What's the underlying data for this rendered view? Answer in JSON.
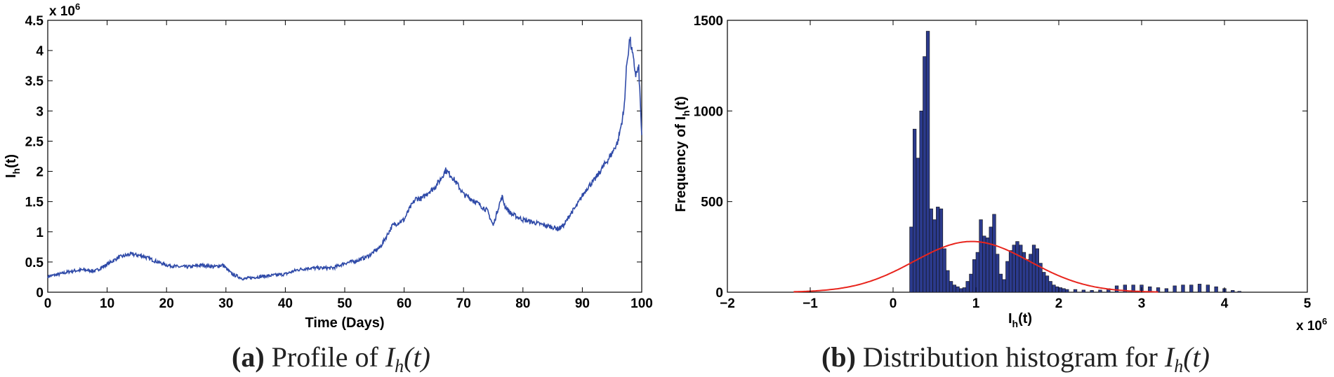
{
  "chart_data": [
    {
      "type": "line",
      "title": "",
      "xlabel": "Time (Days)",
      "ylabel": "I_h(t)",
      "y_multiplier": "x 10^6",
      "xlim": [
        0,
        100
      ],
      "ylim": [
        0,
        4.5
      ],
      "xticks": [
        0,
        10,
        20,
        30,
        40,
        50,
        60,
        70,
        80,
        90,
        100
      ],
      "yticks": [
        0,
        0.5,
        1,
        1.5,
        2,
        2.5,
        3,
        3.5,
        4,
        4.5
      ],
      "series_color": "#2f4aa8",
      "series": [
        {
          "x": [
            0,
            2,
            4,
            6,
            8,
            10,
            12,
            14,
            16,
            18,
            20,
            22,
            24,
            26,
            28,
            29.5,
            31,
            33,
            35,
            37,
            40,
            42,
            44,
            46,
            48,
            50,
            52,
            54,
            56,
            57,
            58,
            60,
            61,
            62,
            63,
            64,
            65,
            66,
            67,
            68,
            69,
            70,
            72,
            74,
            75,
            76,
            76.5,
            77,
            78,
            79,
            80,
            82,
            84,
            86,
            87,
            88,
            89,
            90,
            91,
            92,
            93,
            94,
            95,
            96,
            97,
            97.5,
            98,
            98.5,
            99,
            99.5,
            100
          ],
          "y": [
            0.26,
            0.3,
            0.35,
            0.37,
            0.35,
            0.46,
            0.58,
            0.63,
            0.6,
            0.52,
            0.45,
            0.42,
            0.42,
            0.45,
            0.42,
            0.45,
            0.3,
            0.22,
            0.25,
            0.27,
            0.3,
            0.37,
            0.4,
            0.4,
            0.4,
            0.48,
            0.52,
            0.6,
            0.75,
            0.92,
            1.1,
            1.2,
            1.4,
            1.55,
            1.55,
            1.65,
            1.72,
            1.85,
            2.02,
            1.92,
            1.78,
            1.62,
            1.5,
            1.35,
            1.1,
            1.45,
            1.58,
            1.42,
            1.3,
            1.25,
            1.2,
            1.15,
            1.1,
            1.05,
            1.12,
            1.3,
            1.42,
            1.6,
            1.75,
            1.85,
            2.0,
            2.15,
            2.3,
            2.5,
            3.0,
            3.8,
            4.2,
            3.9,
            3.6,
            3.7,
            2.6
          ]
        }
      ]
    },
    {
      "type": "bar",
      "title": "",
      "xlabel": "I_h(t)",
      "ylabel": "Frequency of I_h(t)",
      "x_multiplier": "x 10^6",
      "xlim": [
        -2,
        5
      ],
      "ylim": [
        0,
        1500
      ],
      "xticks": [
        -2,
        -1,
        0,
        1,
        2,
        3,
        4,
        5
      ],
      "yticks": [
        0,
        500,
        1000,
        1500
      ],
      "bar_color": "#2b3a8c",
      "curve_color": "#e8251d",
      "bin_width": 0.04,
      "bin_centers": [
        0.22,
        0.26,
        0.3,
        0.34,
        0.38,
        0.42,
        0.46,
        0.5,
        0.54,
        0.58,
        0.62,
        0.66,
        0.7,
        0.74,
        0.78,
        0.82,
        0.86,
        0.9,
        0.94,
        0.98,
        1.02,
        1.06,
        1.1,
        1.14,
        1.18,
        1.22,
        1.26,
        1.3,
        1.34,
        1.38,
        1.42,
        1.46,
        1.5,
        1.54,
        1.58,
        1.62,
        1.66,
        1.7,
        1.74,
        1.78,
        1.82,
        1.86,
        1.9,
        1.94,
        1.98,
        2.02,
        2.06,
        2.1,
        2.2,
        2.3,
        2.4,
        2.5,
        2.6,
        2.7,
        2.8,
        2.9,
        3.0,
        3.1,
        3.2,
        3.3,
        3.4,
        3.5,
        3.6,
        3.7,
        3.8,
        3.9,
        4.0,
        4.1,
        4.18
      ],
      "frequencies": [
        360,
        900,
        740,
        1000,
        1300,
        1440,
        460,
        400,
        470,
        460,
        240,
        120,
        60,
        40,
        30,
        20,
        25,
        60,
        100,
        180,
        220,
        400,
        310,
        300,
        360,
        430,
        210,
        100,
        70,
        170,
        230,
        260,
        280,
        260,
        220,
        180,
        210,
        260,
        240,
        160,
        110,
        90,
        60,
        40,
        30,
        25,
        20,
        15,
        15,
        12,
        10,
        12,
        20,
        35,
        40,
        40,
        40,
        30,
        25,
        20,
        35,
        40,
        40,
        45,
        40,
        30,
        20,
        10,
        5
      ],
      "fit_curve": {
        "name": "",
        "mean": 0.95,
        "std": 0.7,
        "peak": 280,
        "x_range": [
          -1.2,
          3.2
        ]
      }
    }
  ],
  "y_multiplier_text": "x 10",
  "x_multiplier_text": "x 10",
  "multiplier_exponent": "6",
  "captions": {
    "a": {
      "tag": "(a)",
      "text": "Profile of ",
      "var": "I",
      "sub": "h",
      "arg": "(t)"
    },
    "b": {
      "tag": "(b)",
      "text": "Distribution histogram for ",
      "var": "I",
      "sub": "h",
      "arg": "(t)"
    }
  },
  "labels": {
    "a_xlabel": "Time (Days)",
    "a_ylabel_main": "I",
    "a_ylabel_sub": "h",
    "a_ylabel_arg": "(t)",
    "b_xlabel_main": "I",
    "b_xlabel_sub": "h",
    "b_xlabel_arg": "(t)",
    "b_ylabel_main": "Frequency of I",
    "b_ylabel_sub": "h",
    "b_ylabel_arg": "(t)"
  }
}
